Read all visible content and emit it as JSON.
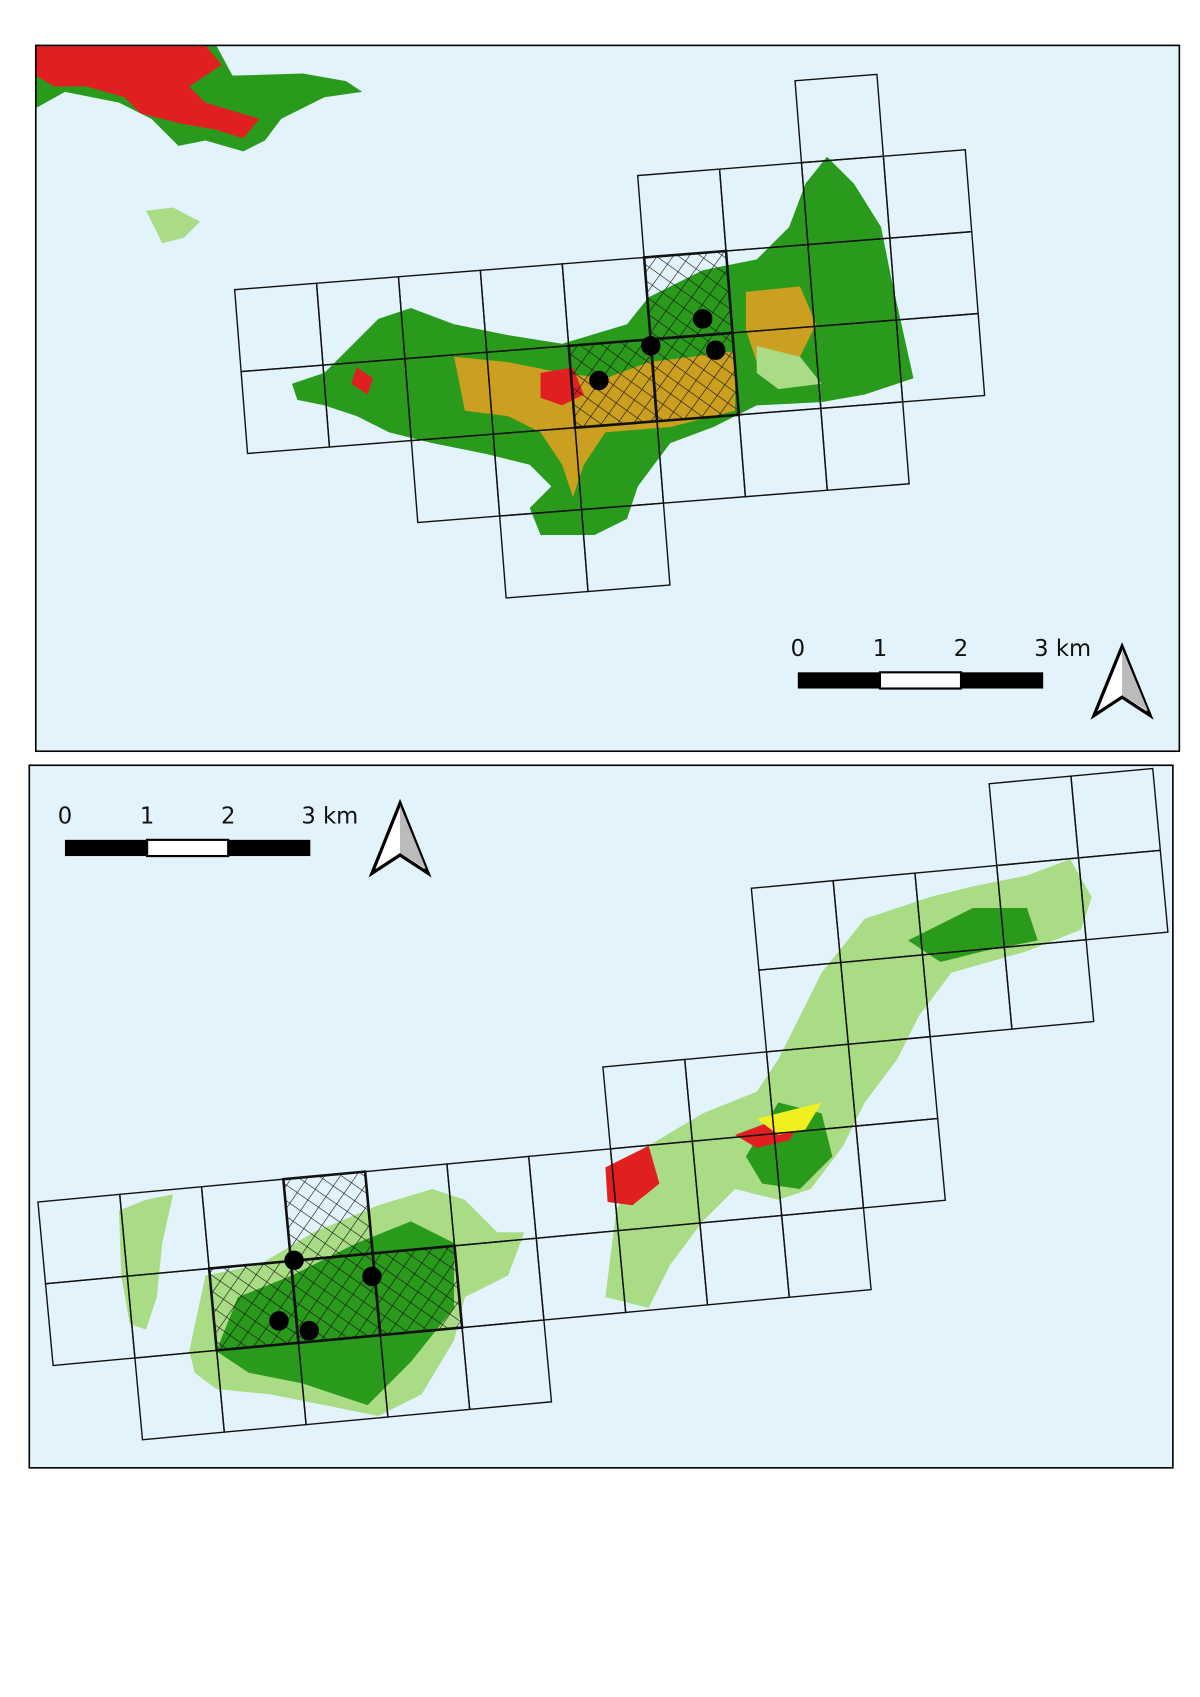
{
  "maps": [
    {
      "scale_labels": [
        "0",
        "1",
        "2",
        "3 km"
      ]
    },
    {
      "scale_labels": [
        "0",
        "1",
        "2",
        "3 km"
      ]
    }
  ]
}
